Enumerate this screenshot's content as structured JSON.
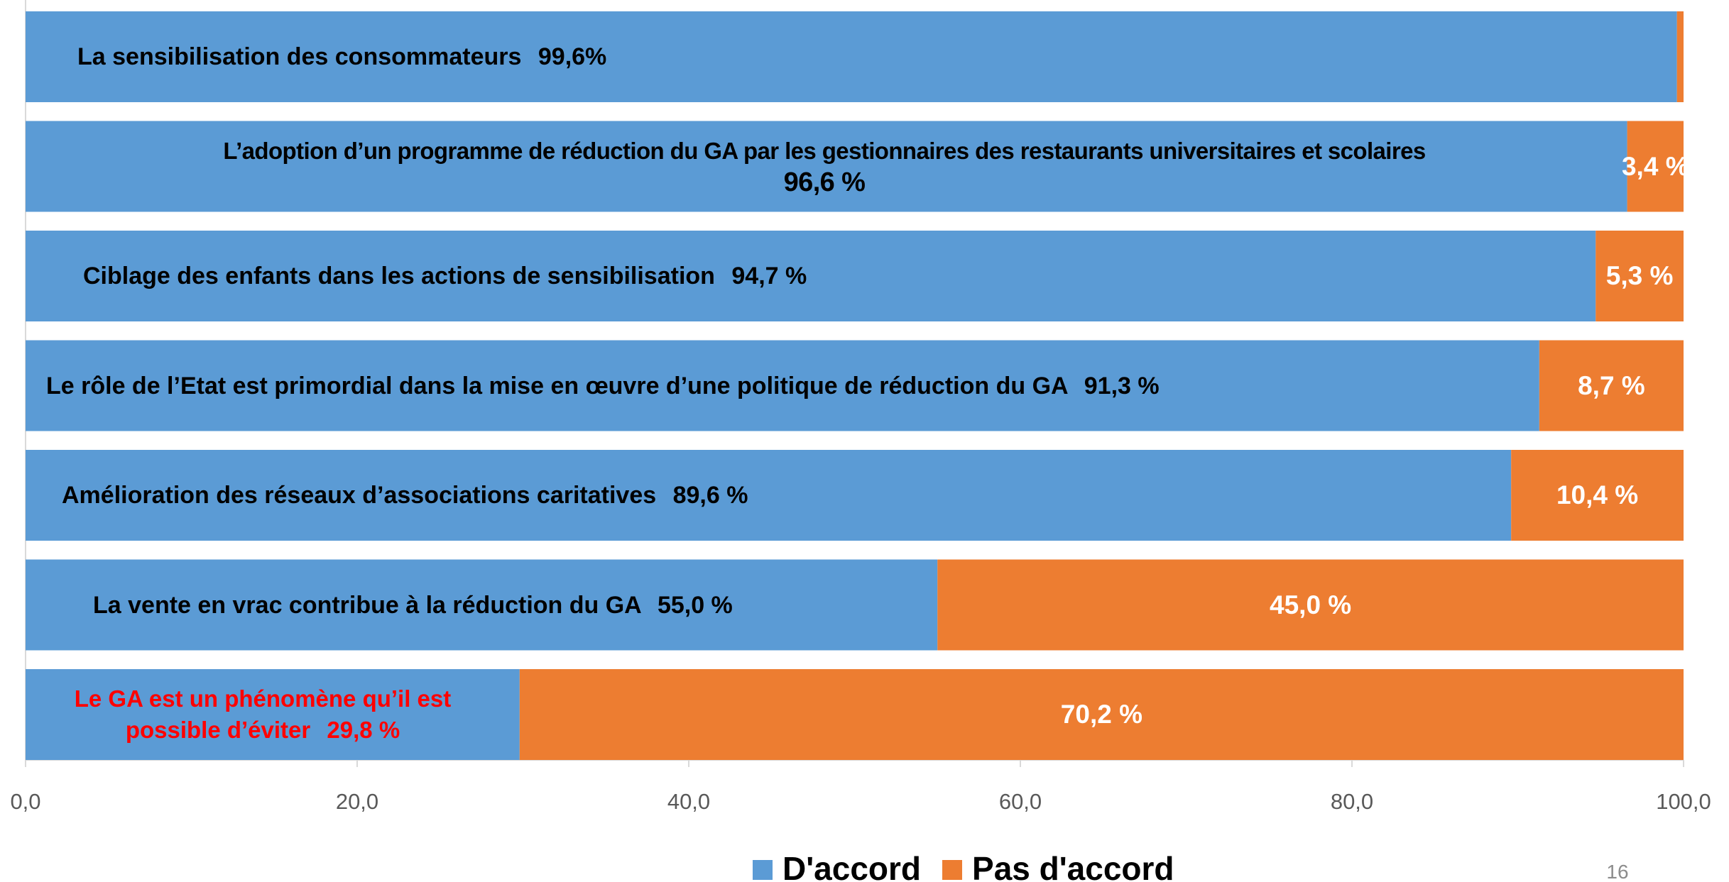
{
  "chart_data": {
    "type": "stacked_barh",
    "categories": [
      "La sensibilisation des consommateurs",
      "L’adoption d’un programme de réduction du GA par les gestionnaires des restaurants universitaires et scolaires",
      "Ciblage des enfants dans les actions de sensibilisation",
      "Le rôle de l’Etat est primordial dans la mise en œuvre d’une politique de réduction du GA",
      "Amélioration des réseaux d’associations caritatives",
      "La vente en vrac contribue à la réduction du GA",
      "Le GA est un phénomène qu’il est possible d’éviter"
    ],
    "series": [
      {
        "name": "D'accord",
        "color": "#5b9bd5",
        "values": [
          99.6,
          96.6,
          94.7,
          91.3,
          89.6,
          55.0,
          29.8
        ],
        "value_labels": [
          "99,6%",
          "96,6 %",
          "94,7 %",
          "91,3 %",
          "89,6 %",
          "55,0 %",
          "29,8 %"
        ]
      },
      {
        "name": "Pas d'accord",
        "color": "#ed7d31",
        "values": [
          0.4,
          3.4,
          5.3,
          8.7,
          10.4,
          45.0,
          70.2
        ],
        "value_labels": [
          null,
          "3,4 %",
          "5,3 %",
          "8,7 %",
          "10,4 %",
          "45,0 %",
          "70,2 %"
        ]
      }
    ],
    "xlim": [
      0,
      100
    ],
    "xticks": [
      {
        "value": 0,
        "label": "0,0"
      },
      {
        "value": 20,
        "label": "20,0"
      },
      {
        "value": 40,
        "label": "40,0"
      },
      {
        "value": 60,
        "label": "60,0"
      },
      {
        "value": 80,
        "label": "80,0"
      },
      {
        "value": 100,
        "label": "100,0"
      }
    ],
    "legend": "bottom",
    "footer": "16"
  }
}
